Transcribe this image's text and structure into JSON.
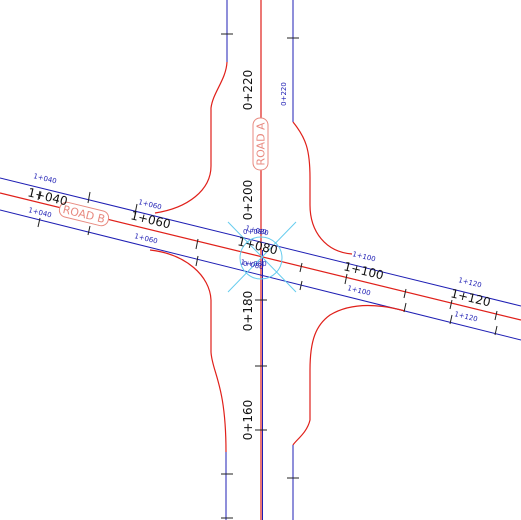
{
  "colors": {
    "background": "#ffffff",
    "alignment": "#e0201a",
    "edge": "#1f1fb4",
    "chainage": "#111111",
    "chainage_small": "#1f1fb4",
    "road_label": "#e88a80",
    "marker": "#66ccee"
  },
  "road_a": {
    "name": "ROAD A",
    "stations": [
      {
        "label": "0+160"
      },
      {
        "label": "0+180"
      },
      {
        "label": "0+200"
      },
      {
        "label": "0+220"
      },
      {
        "label": "0+220"
      },
      {
        "label": "0+080"
      },
      {
        "label": "0+080"
      }
    ]
  },
  "road_b": {
    "name": "ROAD B",
    "stations": [
      {
        "label": "1+040"
      },
      {
        "label": "1+060"
      },
      {
        "label": "1+080"
      },
      {
        "label": "1+100"
      },
      {
        "label": "1+120"
      },
      {
        "label": "1+040"
      },
      {
        "label": "1+040"
      },
      {
        "label": "1+060"
      },
      {
        "label": "1+060"
      },
      {
        "label": "1+080"
      },
      {
        "label": "1+080"
      },
      {
        "label": "1+100"
      },
      {
        "label": "1+100"
      },
      {
        "label": "1+120"
      },
      {
        "label": "1+120"
      }
    ]
  }
}
